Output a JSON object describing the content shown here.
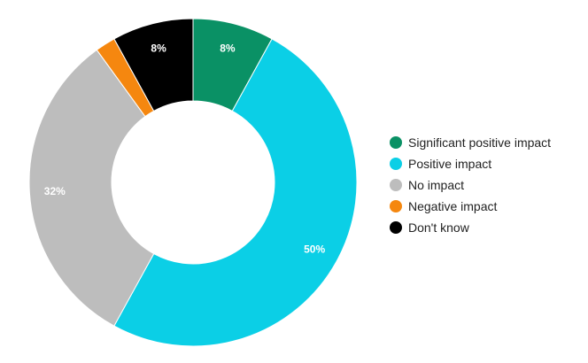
{
  "chart_data": {
    "type": "pie",
    "title": "",
    "legend_position": "right",
    "categories": [
      "Significant positive impact",
      "Positive impact",
      "No impact",
      "Negative impact",
      "Don't know"
    ],
    "values": [
      8,
      50,
      32,
      2,
      8
    ],
    "data_labels": [
      "8%",
      "50%",
      "32%",
      "",
      "8%"
    ],
    "colors": [
      "#0a9165",
      "#0bcfe6",
      "#bdbdbd",
      "#f5870f",
      "#000000"
    ],
    "donut": true
  }
}
